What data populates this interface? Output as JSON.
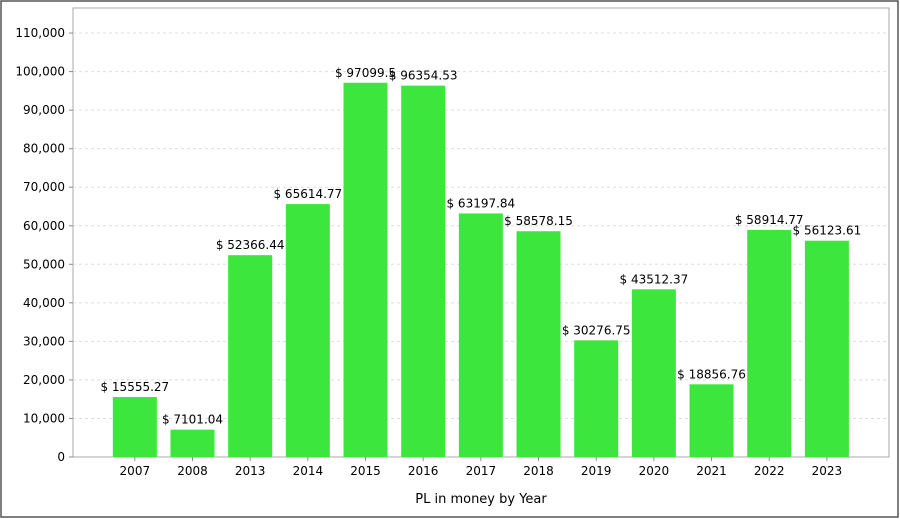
{
  "chart_data": {
    "type": "bar",
    "x_label": "PL in money by Year",
    "categories": [
      "2007",
      "2008",
      "2013",
      "2014",
      "2015",
      "2016",
      "2017",
      "2018",
      "2019",
      "2020",
      "2021",
      "2022",
      "2023"
    ],
    "values": [
      15555.27,
      7101.04,
      52366.44,
      65614.77,
      97099.5,
      96354.53,
      63197.84,
      58578.15,
      30276.75,
      43512.37,
      18856.76,
      58914.77,
      56123.61
    ],
    "value_labels": [
      "$ 15555.27",
      "$ 7101.04",
      "$ 52366.44",
      "$ 65614.77",
      "$ 97099.5",
      "$ 96354.53",
      "$ 63197.84",
      "$ 58578.15",
      "$ 30276.75",
      "$ 43512.37",
      "$ 18856.76",
      "$ 58914.77",
      "$ 56123.61"
    ],
    "color": "#3de63d",
    "ylim": [
      0,
      116500
    ],
    "yticks": [
      0,
      {
        "value": 10000,
        "label": "10,000"
      },
      {
        "value": 20000,
        "label": "20,000"
      },
      {
        "value": 30000,
        "label": "30,000"
      },
      {
        "value": 40000,
        "label": "40,000"
      },
      {
        "value": 50000,
        "label": "50,000"
      },
      {
        "value": 60000,
        "label": "60,000"
      },
      {
        "value": 70000,
        "label": "70,000"
      },
      {
        "value": 80000,
        "label": "80,000"
      },
      {
        "value": 90000,
        "label": "90,000"
      },
      {
        "value": 100000,
        "label": "100,000"
      },
      {
        "value": 110000,
        "label": "110,000"
      }
    ],
    "grid": true
  }
}
